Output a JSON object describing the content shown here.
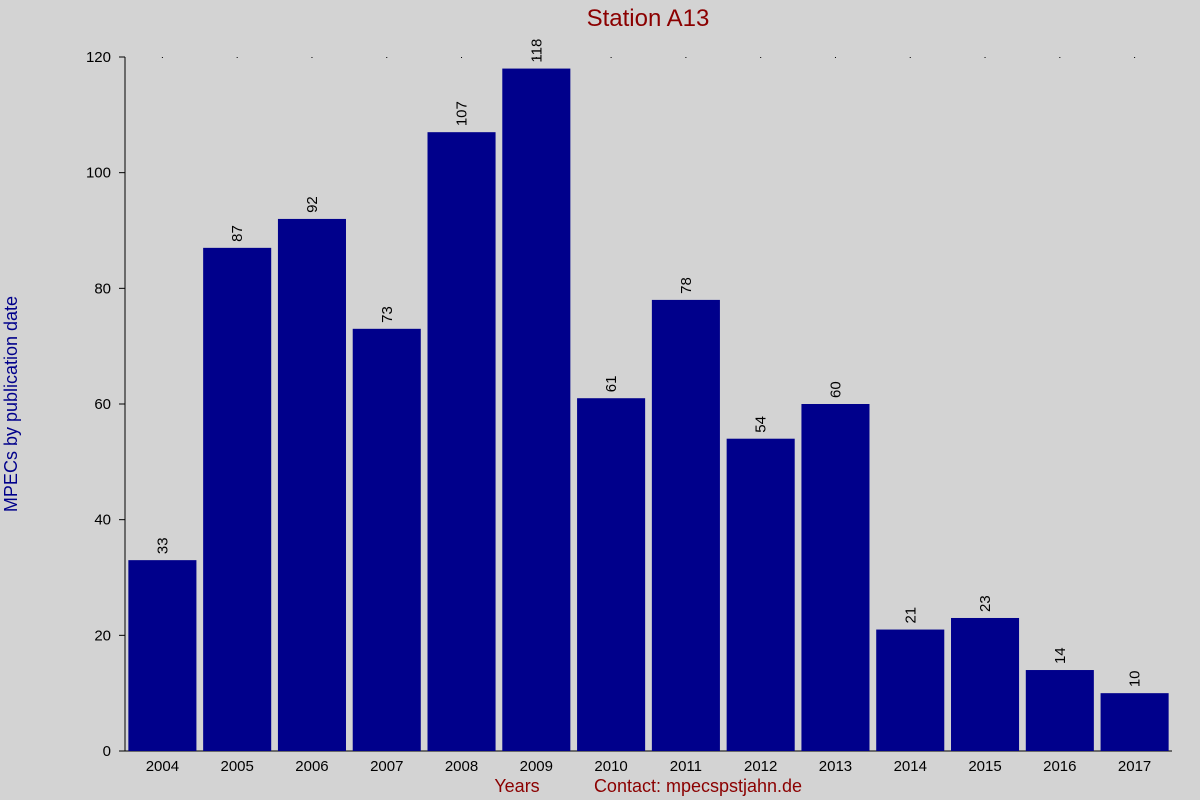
{
  "chart_data": {
    "type": "bar",
    "title": "Station A13",
    "x_label": "Years",
    "annotation": "Contact: mpecspstjahn.de",
    "y_label": "MPECs by publication date",
    "categories": [
      "2004",
      "2005",
      "2006",
      "2007",
      "2008",
      "2009",
      "2010",
      "2011",
      "2012",
      "2013",
      "2014",
      "2015",
      "2016",
      "2017"
    ],
    "values": [
      33,
      87,
      92,
      73,
      107,
      118,
      61,
      78,
      54,
      60,
      21,
      23,
      14,
      10
    ],
    "color": "#00008b",
    "ylim": [
      0,
      120
    ],
    "yticks": [
      0,
      20,
      40,
      60,
      80,
      100,
      120
    ],
    "grid": false
  }
}
